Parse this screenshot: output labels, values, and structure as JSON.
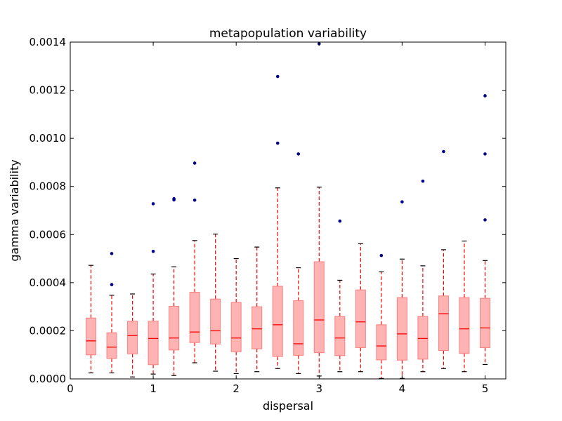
{
  "chart_data": {
    "type": "box",
    "title": "metapopulation variability",
    "xlabel": "dispersal",
    "ylabel": "gamma variability",
    "xlim": [
      0,
      5.25
    ],
    "ylim": [
      0,
      0.0014
    ],
    "x_ticks": [
      0,
      1,
      2,
      3,
      4,
      5
    ],
    "x_tick_labels": [
      "0",
      "1",
      "2",
      "3",
      "4",
      "5"
    ],
    "y_ticks": [
      0,
      0.0002,
      0.0004,
      0.0006,
      0.0008,
      0.001,
      0.0012,
      0.0014
    ],
    "y_tick_labels": [
      "0.0000",
      "0.0002",
      "0.0004",
      "0.0006",
      "0.0008",
      "0.0010",
      "0.0012",
      "0.0014"
    ],
    "grid": false,
    "colors": {
      "box_fill": "#ff9999",
      "box_edge": "#ff7f7f",
      "median": "#ff0000",
      "whisker": "#ff0000",
      "cap": "#000000",
      "outlier": "#00008b"
    },
    "boxes": [
      {
        "x": 0.25,
        "whislo": 2.5e-05,
        "q1": 0.0001,
        "med": 0.000158,
        "q3": 0.000253,
        "whishi": 0.000472,
        "fliers": []
      },
      {
        "x": 0.5,
        "whislo": 2.5e-05,
        "q1": 8.5e-05,
        "med": 0.000132,
        "q3": 0.000192,
        "whishi": 0.000348,
        "fliers": [
          0.000521,
          0.000392
        ]
      },
      {
        "x": 0.75,
        "whislo": 8e-06,
        "q1": 0.000104,
        "med": 0.00018,
        "q3": 0.00024,
        "whishi": 0.000353,
        "fliers": []
      },
      {
        "x": 1.0,
        "whislo": 2e-05,
        "q1": 5.9e-05,
        "med": 0.000168,
        "q3": 0.00024,
        "whishi": 0.000436,
        "fliers": [
          0.000728,
          0.00053
        ]
      },
      {
        "x": 1.25,
        "whislo": 1.4e-05,
        "q1": 0.00012,
        "med": 0.00017,
        "q3": 0.000302,
        "whishi": 0.000466,
        "fliers": [
          0.000749,
          0.000744
        ]
      },
      {
        "x": 1.5,
        "whislo": 6.7e-05,
        "q1": 0.000151,
        "med": 0.000195,
        "q3": 0.00036,
        "whishi": 0.000575,
        "fliers": [
          0.000897,
          0.000743
        ]
      },
      {
        "x": 1.75,
        "whislo": 3.2e-05,
        "q1": 0.000145,
        "med": 0.0002,
        "q3": 0.000332,
        "whishi": 0.000602,
        "fliers": []
      },
      {
        "x": 2.0,
        "whislo": 2.2e-05,
        "q1": 0.000113,
        "med": 0.00017,
        "q3": 0.000318,
        "whishi": 0.0005,
        "fliers": []
      },
      {
        "x": 2.25,
        "whislo": 3e-05,
        "q1": 0.000125,
        "med": 0.000208,
        "q3": 0.0003,
        "whishi": 0.000548,
        "fliers": []
      },
      {
        "x": 2.5,
        "whislo": 4.3e-05,
        "q1": 9.3e-05,
        "med": 0.000225,
        "q3": 0.000385,
        "whishi": 0.000794,
        "fliers": [
          0.001257,
          0.00098
        ]
      },
      {
        "x": 2.75,
        "whislo": 2.2e-05,
        "q1": 9.8e-05,
        "med": 0.000146,
        "q3": 0.000325,
        "whishi": 0.000462,
        "fliers": [
          0.000935
        ]
      },
      {
        "x": 3.0,
        "whislo": 1.2e-05,
        "q1": 0.000109,
        "med": 0.000245,
        "q3": 0.000487,
        "whishi": 0.000797,
        "fliers": [
          0.001393
        ]
      },
      {
        "x": 3.25,
        "whislo": 3e-05,
        "q1": 9.7e-05,
        "med": 0.00017,
        "q3": 0.00026,
        "whishi": 0.00041,
        "fliers": [
          0.000656
        ]
      },
      {
        "x": 3.5,
        "whislo": 3e-05,
        "q1": 0.00013,
        "med": 0.000237,
        "q3": 0.00037,
        "whishi": 0.000562,
        "fliers": []
      },
      {
        "x": 3.75,
        "whislo": 2e-06,
        "q1": 7.9e-05,
        "med": 0.000137,
        "q3": 0.000225,
        "whishi": 0.000445,
        "fliers": [
          0.000513
        ]
      },
      {
        "x": 4.0,
        "whislo": 2e-06,
        "q1": 7.8e-05,
        "med": 0.000187,
        "q3": 0.000338,
        "whishi": 0.000498,
        "fliers": [
          0.000736
        ]
      },
      {
        "x": 4.25,
        "whislo": 3e-05,
        "q1": 8.2e-05,
        "med": 0.000168,
        "q3": 0.00026,
        "whishi": 0.00047,
        "fliers": [
          0.000822
        ]
      },
      {
        "x": 4.5,
        "whislo": 4.3e-05,
        "q1": 0.000118,
        "med": 0.000271,
        "q3": 0.000345,
        "whishi": 0.000537,
        "fliers": [
          0.000945
        ]
      },
      {
        "x": 4.75,
        "whislo": 3e-05,
        "q1": 0.000106,
        "med": 0.000208,
        "q3": 0.000338,
        "whishi": 0.000573,
        "fliers": []
      },
      {
        "x": 5.0,
        "whislo": 6e-05,
        "q1": 0.00013,
        "med": 0.000212,
        "q3": 0.000335,
        "whishi": 0.000492,
        "fliers": [
          0.001177,
          0.000935,
          0.000661
        ]
      }
    ]
  }
}
